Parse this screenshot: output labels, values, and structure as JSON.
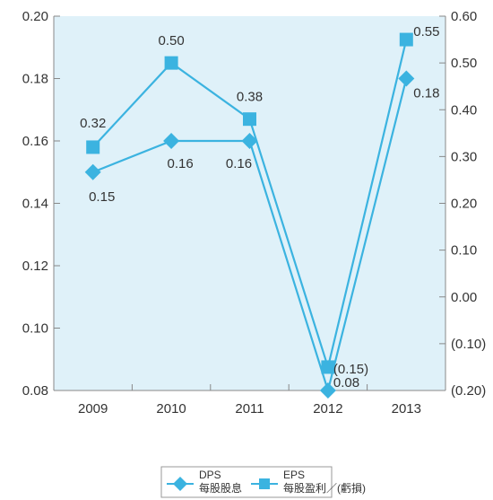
{
  "chart_data": {
    "type": "line",
    "categories": [
      "2009",
      "2010",
      "2011",
      "2012",
      "2013"
    ],
    "y_left": {
      "min": 0.08,
      "max": 0.2,
      "ticks": [
        "0.20",
        "0.18",
        "0.16",
        "0.14",
        "0.12",
        "0.10",
        "0.08"
      ],
      "tick_values": [
        0.2,
        0.18,
        0.16,
        0.14,
        0.12,
        0.1,
        0.08
      ]
    },
    "y_right": {
      "min": -0.2,
      "max": 0.6,
      "ticks": [
        "0.60",
        "0.50",
        "0.40",
        "0.30",
        "0.20",
        "0.10",
        "0.00",
        "(0.10)",
        "(0.20)"
      ],
      "tick_values": [
        0.6,
        0.5,
        0.4,
        0.3,
        0.2,
        0.1,
        0.0,
        -0.1,
        -0.2
      ]
    },
    "series": [
      {
        "name": "DPS",
        "name_zh": "每股股息",
        "axis": "left",
        "marker": "diamond",
        "values": [
          0.15,
          0.16,
          0.16,
          0.08,
          0.18
        ],
        "labels": [
          "0.15",
          "0.16",
          "0.16",
          "0.08",
          "0.18"
        ]
      },
      {
        "name": "EPS",
        "name_zh": "每股盈利／(虧損)",
        "axis": "right",
        "marker": "square",
        "values": [
          0.32,
          0.5,
          0.38,
          -0.15,
          0.55
        ],
        "labels": [
          "0.32",
          "0.50",
          "0.38",
          "(0.15)",
          "0.55"
        ]
      }
    ],
    "grid": false,
    "legend_position": "bottom",
    "colors": {
      "line": "#3bb3e0",
      "marker": "#3bb3e0",
      "plot_background": "#dff1f9",
      "axis": "#888888"
    }
  }
}
